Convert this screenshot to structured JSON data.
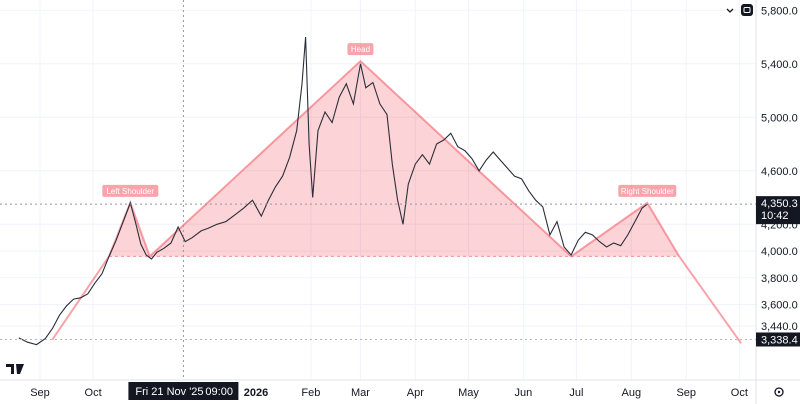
{
  "chart_data": {
    "type": "line",
    "title": "",
    "x_ticks": [
      "Sep",
      "Oct",
      "Feb",
      "Mar",
      "Apr",
      "May",
      "Jun",
      "Jul",
      "Aug",
      "Sep",
      "Oct"
    ],
    "year_tick": "2026",
    "y_ticks": [
      "5,800.0",
      "5,400.0",
      "5,000.0",
      "4,600.0",
      "4,200.0",
      "4,000.0",
      "3,800.0",
      "3,600.0",
      "3,440.0"
    ],
    "ylim": [
      3240,
      5860
    ],
    "crosshair": {
      "date_label": "Fri 21 Nov '25",
      "time_label": "09:00",
      "price": 4350.3
    },
    "last_price": {
      "value": "4,350.3",
      "countdown": "10:42"
    },
    "target_price": {
      "value": "3,338.4"
    },
    "pattern": {
      "name": "Head and Shoulders",
      "labels": [
        "Left Shoulder",
        "Head",
        "Right Shoulder"
      ],
      "points": [
        {
          "date": "2025-09-08",
          "price": 3338
        },
        {
          "date": "2025-10-10",
          "price": 3960
        },
        {
          "date": "2025-10-22",
          "price": 4360
        },
        {
          "date": "2025-11-02",
          "price": 3960
        },
        {
          "date": "2026-03-01",
          "price": 5420
        },
        {
          "date": "2026-06-28",
          "price": 3960
        },
        {
          "date": "2026-08-10",
          "price": 4360
        },
        {
          "date": "2026-08-28",
          "price": 3960
        },
        {
          "date": "2026-10-02",
          "price": 3310
        }
      ],
      "neckline": 3960
    },
    "series": [
      {
        "points": [
          [
            "2025-08-20",
            3350
          ],
          [
            "2025-08-25",
            3318
          ],
          [
            "2025-08-30",
            3300
          ],
          [
            "2025-09-04",
            3345
          ],
          [
            "2025-09-08",
            3420
          ],
          [
            "2025-09-12",
            3520
          ],
          [
            "2025-09-16",
            3590
          ],
          [
            "2025-09-20",
            3640
          ],
          [
            "2025-09-24",
            3650
          ],
          [
            "2025-09-28",
            3680
          ],
          [
            "2025-10-02",
            3760
          ],
          [
            "2025-10-06",
            3830
          ],
          [
            "2025-10-10",
            3960
          ],
          [
            "2025-10-14",
            4080
          ],
          [
            "2025-10-18",
            4220
          ],
          [
            "2025-10-22",
            4360
          ],
          [
            "2025-10-25",
            4210
          ],
          [
            "2025-10-28",
            4050
          ],
          [
            "2025-10-31",
            3970
          ],
          [
            "2025-11-03",
            3940
          ],
          [
            "2025-11-06",
            3990
          ],
          [
            "2025-11-10",
            4020
          ],
          [
            "2025-11-14",
            4060
          ],
          [
            "2025-11-18",
            4180
          ],
          [
            "2025-11-22",
            4070
          ],
          [
            "2025-11-26",
            4100
          ],
          [
            "2025-12-01",
            4150
          ],
          [
            "2025-12-05",
            4170
          ],
          [
            "2025-12-10",
            4200
          ],
          [
            "2025-12-15",
            4220
          ],
          [
            "2025-12-20",
            4270
          ],
          [
            "2025-12-25",
            4320
          ],
          [
            "2025-12-30",
            4380
          ],
          [
            "2026-01-04",
            4260
          ],
          [
            "2026-01-08",
            4380
          ],
          [
            "2026-01-12",
            4480
          ],
          [
            "2026-01-16",
            4560
          ],
          [
            "2026-01-20",
            4700
          ],
          [
            "2026-01-24",
            4900
          ],
          [
            "2026-01-27",
            5250
          ],
          [
            "2026-01-29",
            5600
          ],
          [
            "2026-01-31",
            4800
          ],
          [
            "2026-02-02",
            4400
          ],
          [
            "2026-02-05",
            4900
          ],
          [
            "2026-02-09",
            5040
          ],
          [
            "2026-02-13",
            4960
          ],
          [
            "2026-02-17",
            5150
          ],
          [
            "2026-02-21",
            5250
          ],
          [
            "2026-02-25",
            5100
          ],
          [
            "2026-03-01",
            5400
          ],
          [
            "2026-03-04",
            5220
          ],
          [
            "2026-03-08",
            5260
          ],
          [
            "2026-03-12",
            5100
          ],
          [
            "2026-03-16",
            5020
          ],
          [
            "2026-03-19",
            4650
          ],
          [
            "2026-03-22",
            4380
          ],
          [
            "2026-03-25",
            4200
          ],
          [
            "2026-03-28",
            4500
          ],
          [
            "2026-04-01",
            4650
          ],
          [
            "2026-04-05",
            4720
          ],
          [
            "2026-04-09",
            4650
          ],
          [
            "2026-04-13",
            4800
          ],
          [
            "2026-04-17",
            4830
          ],
          [
            "2026-04-21",
            4880
          ],
          [
            "2026-04-25",
            4780
          ],
          [
            "2026-04-29",
            4750
          ],
          [
            "2026-05-03",
            4690
          ],
          [
            "2026-05-07",
            4600
          ],
          [
            "2026-05-11",
            4680
          ],
          [
            "2026-05-15",
            4740
          ],
          [
            "2026-05-19",
            4680
          ],
          [
            "2026-05-23",
            4620
          ],
          [
            "2026-05-27",
            4560
          ],
          [
            "2026-05-31",
            4540
          ],
          [
            "2026-06-04",
            4450
          ],
          [
            "2026-06-08",
            4380
          ],
          [
            "2026-06-12",
            4330
          ],
          [
            "2026-06-16",
            4120
          ],
          [
            "2026-06-20",
            4220
          ],
          [
            "2026-06-24",
            4030
          ],
          [
            "2026-06-28",
            3970
          ],
          [
            "2026-07-02",
            4080
          ],
          [
            "2026-07-06",
            4140
          ],
          [
            "2026-07-10",
            4120
          ],
          [
            "2026-07-14",
            4070
          ],
          [
            "2026-07-18",
            4030
          ],
          [
            "2026-07-22",
            4060
          ],
          [
            "2026-07-26",
            4040
          ],
          [
            "2026-07-30",
            4120
          ],
          [
            "2026-08-03",
            4220
          ],
          [
            "2026-08-07",
            4320
          ],
          [
            "2026-08-10",
            4350
          ]
        ]
      }
    ]
  }
}
